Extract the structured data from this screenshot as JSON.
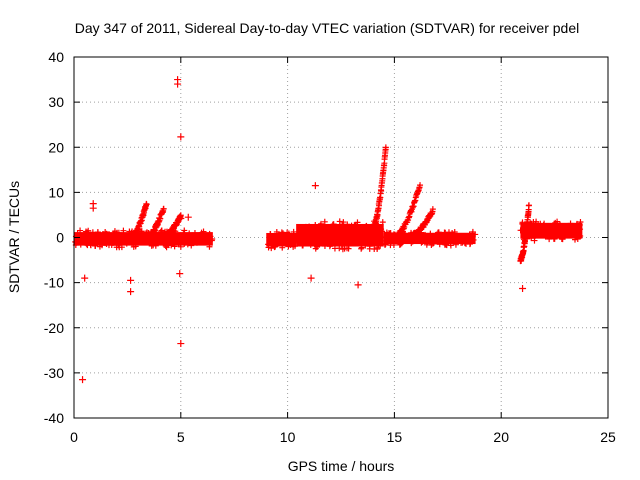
{
  "chart_data": {
    "type": "scatter",
    "title": "Day 347 of 2011, Sidereal Day-to-day VTEC variation (SDTVAR) for receiver pdel",
    "xlabel": "GPS time / hours",
    "ylabel": "SDTVAR / TECUs",
    "xlim": [
      0,
      25
    ],
    "ylim": [
      -40,
      40
    ],
    "xticks": [
      0,
      5,
      10,
      15,
      20,
      25
    ],
    "yticks": [
      -40,
      -30,
      -20,
      -10,
      0,
      10,
      20,
      30,
      40
    ],
    "grid": true,
    "marker": "+",
    "color": "#ff0000",
    "series": [
      {
        "name": "SDTVAR",
        "dense_segments": [
          {
            "x": [
              0.0,
              6.5
            ],
            "center": -0.3,
            "spread": 3.0
          },
          {
            "x": [
              9.0,
              10.4
            ],
            "center": -0.5,
            "spread": 3.0
          },
          {
            "x": [
              10.4,
              14.5
            ],
            "center": 0.5,
            "spread": 5.0
          },
          {
            "x": [
              14.5,
              18.8
            ],
            "center": -0.2,
            "spread": 2.5
          },
          {
            "x": [
              20.9,
              23.8
            ],
            "center": 1.5,
            "spread": 3.5
          }
        ],
        "branches": [
          {
            "x": [
              2.6,
              3.4
            ],
            "y": [
              -0.5,
              7.5
            ]
          },
          {
            "x": [
              3.4,
              4.2
            ],
            "y": [
              0.0,
              6.5
            ]
          },
          {
            "x": [
              4.3,
              5.0
            ],
            "y": [
              0.5,
              5.0
            ]
          },
          {
            "x": [
              14.0,
              14.6
            ],
            "y": [
              2.0,
              20.0
            ]
          },
          {
            "x": [
              15.0,
              16.2
            ],
            "y": [
              0.0,
              11.5
            ]
          },
          {
            "x": [
              15.8,
              16.8
            ],
            "y": [
              0.5,
              6.0
            ]
          },
          {
            "x": [
              20.9,
              21.3
            ],
            "y": [
              -5.0,
              7.0
            ]
          }
        ],
        "outliers": [
          {
            "x": 0.4,
            "y": -31.5
          },
          {
            "x": 0.5,
            "y": -9.0
          },
          {
            "x": 0.9,
            "y": 7.5
          },
          {
            "x": 0.9,
            "y": 6.5
          },
          {
            "x": 2.65,
            "y": -9.5
          },
          {
            "x": 2.65,
            "y": -12.0
          },
          {
            "x": 4.85,
            "y": 35.0
          },
          {
            "x": 4.85,
            "y": 34.0
          },
          {
            "x": 5.0,
            "y": 22.3
          },
          {
            "x": 5.0,
            "y": -23.5
          },
          {
            "x": 4.95,
            "y": -8.0
          },
          {
            "x": 5.0,
            "y": 4.2
          },
          {
            "x": 5.35,
            "y": 4.5
          },
          {
            "x": 11.3,
            "y": 11.5
          },
          {
            "x": 11.1,
            "y": -9.0
          },
          {
            "x": 13.3,
            "y": -10.5
          },
          {
            "x": 21.0,
            "y": -11.3
          }
        ]
      }
    ]
  }
}
